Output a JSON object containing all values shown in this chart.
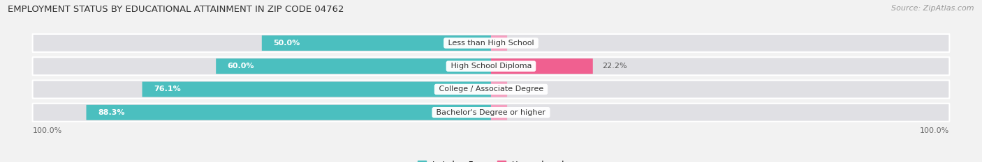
{
  "title": "EMPLOYMENT STATUS BY EDUCATIONAL ATTAINMENT IN ZIP CODE 04762",
  "source": "Source: ZipAtlas.com",
  "categories": [
    "Less than High School",
    "High School Diploma",
    "College / Associate Degree",
    "Bachelor's Degree or higher"
  ],
  "in_labor_force": [
    50.0,
    60.0,
    76.1,
    88.3
  ],
  "unemployed": [
    0.0,
    22.2,
    0.0,
    0.0
  ],
  "color_labor": "#4bbfbf",
  "color_unemployed": "#f06090",
  "color_unemployed_light": "#f5a0c0",
  "color_bg_bar": "#e0e0e4",
  "color_bg": "#f2f2f2",
  "axis_label_left": "100.0%",
  "axis_label_right": "100.0%",
  "bar_height": 0.62,
  "figsize": [
    14.06,
    2.33
  ],
  "dpi": 100,
  "total_width": 100
}
